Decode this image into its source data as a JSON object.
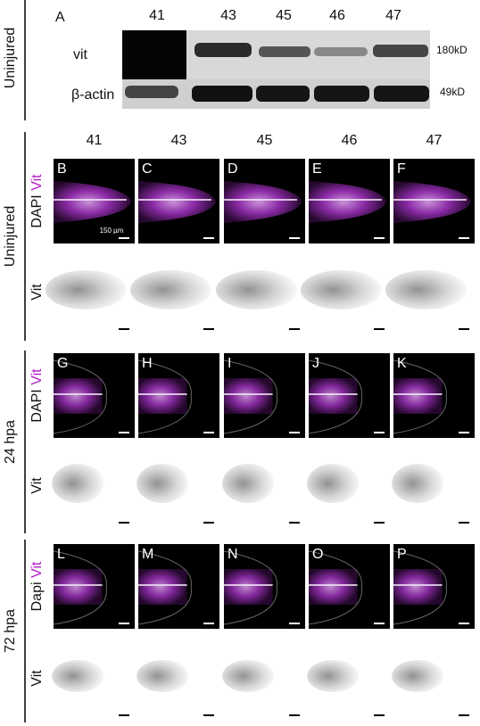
{
  "western_blot": {
    "group_label": "Uninjured",
    "panel": "A",
    "lanes": [
      "41",
      "43",
      "45",
      "46",
      "47"
    ],
    "rows": [
      {
        "label": "vit",
        "size": "180kD"
      },
      {
        "label": "β-actin",
        "size": "49kD"
      }
    ]
  },
  "microscopy": {
    "columns": [
      "41",
      "43",
      "45",
      "46",
      "47"
    ],
    "scale_bar": "150 µm",
    "groups": [
      {
        "label": "Uninjured",
        "channel_labels": [
          "DAPI",
          "Vit"
        ],
        "gray_label": "Vit",
        "panels": [
          "B",
          "C",
          "D",
          "E",
          "F"
        ]
      },
      {
        "label": "24 hpa",
        "channel_labels": [
          "DAPI",
          "Vit"
        ],
        "gray_label": "Vit",
        "panels": [
          "G",
          "H",
          "I",
          "J",
          "K"
        ]
      },
      {
        "label": "72 hpa",
        "channel_labels": [
          "Dapi",
          "Vit"
        ],
        "gray_label": "Vit",
        "panels": [
          "L",
          "M",
          "N",
          "O",
          "P"
        ]
      }
    ]
  }
}
